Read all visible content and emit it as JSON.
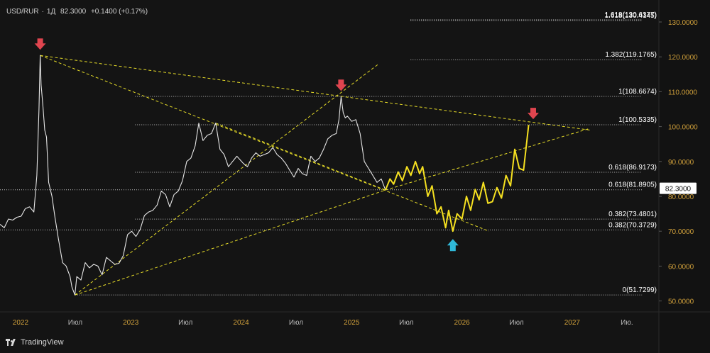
{
  "header": {
    "symbol": "USD/RUR",
    "timeframe": "1Д",
    "price": "82.3000",
    "change": "+0.1400 (+0.17%)"
  },
  "footer": {
    "brand": "TradingView"
  },
  "colors": {
    "background": "#141414",
    "price_line": "#e6e6e6",
    "projection": "#f5e020",
    "trend_lines": "#e6dc28",
    "axis_text": "#cf9f3a",
    "down_arrow": "#e0454f",
    "up_arrow": "#2fb8d8"
  },
  "chart_data": {
    "type": "line",
    "title": "",
    "xlabel": "",
    "ylabel": "",
    "x_tick_labels": [
      "2022",
      "Июл",
      "2023",
      "Июл",
      "2024",
      "Июл",
      "2025",
      "Июл",
      "2026",
      "Июл",
      "2027",
      "Ию."
    ],
    "y_tick_labels": [
      "130.0000",
      "120.0000",
      "110.0000",
      "100.0000",
      "90.0000",
      "80.0000",
      "70.0000",
      "60.0000",
      "50.0000"
    ],
    "ylim": [
      48,
      134
    ],
    "xlim": [
      "2021-10-25",
      "2027-10-15"
    ],
    "current_price_label": "82.3000",
    "current_price": 82.3,
    "series": [
      {
        "role": "history",
        "points": [
          [
            "2021-10-25",
            72.0
          ],
          [
            "2021-11-08",
            71.0
          ],
          [
            "2021-11-22",
            73.5
          ],
          [
            "2021-12-06",
            73.2
          ],
          [
            "2021-12-20",
            74.0
          ],
          [
            "2022-01-03",
            74.3
          ],
          [
            "2022-01-17",
            76.5
          ],
          [
            "2022-01-31",
            77.0
          ],
          [
            "2022-02-14",
            75.5
          ],
          [
            "2022-02-24",
            86.0
          ],
          [
            "2022-03-03",
            105.0
          ],
          [
            "2022-03-07",
            120.4
          ],
          [
            "2022-03-10",
            112.0
          ],
          [
            "2022-03-16",
            106.0
          ],
          [
            "2022-03-22",
            99.0
          ],
          [
            "2022-03-28",
            97.0
          ],
          [
            "2022-04-04",
            84.0
          ],
          [
            "2022-04-15",
            80.0
          ],
          [
            "2022-04-25",
            74.0
          ],
          [
            "2022-05-06",
            68.0
          ],
          [
            "2022-05-20",
            61.0
          ],
          [
            "2022-06-01",
            60.0
          ],
          [
            "2022-06-14",
            57.0
          ],
          [
            "2022-06-20",
            54.0
          ],
          [
            "2022-06-30",
            51.7
          ],
          [
            "2022-07-06",
            57.0
          ],
          [
            "2022-07-20",
            56.0
          ],
          [
            "2022-08-03",
            61.0
          ],
          [
            "2022-08-17",
            59.5
          ],
          [
            "2022-08-31",
            60.5
          ],
          [
            "2022-09-14",
            60.0
          ],
          [
            "2022-09-28",
            57.5
          ],
          [
            "2022-10-12",
            62.5
          ],
          [
            "2022-10-26",
            61.5
          ],
          [
            "2022-11-09",
            60.5
          ],
          [
            "2022-11-23",
            60.8
          ],
          [
            "2022-12-07",
            63.0
          ],
          [
            "2022-12-21",
            69.0
          ],
          [
            "2023-01-04",
            70.0
          ],
          [
            "2023-01-18",
            68.5
          ],
          [
            "2023-02-01",
            70.5
          ],
          [
            "2023-02-15",
            74.5
          ],
          [
            "2023-03-01",
            75.5
          ],
          [
            "2023-03-15",
            76.0
          ],
          [
            "2023-03-29",
            77.5
          ],
          [
            "2023-04-12",
            81.5
          ],
          [
            "2023-04-26",
            80.5
          ],
          [
            "2023-05-10",
            77.0
          ],
          [
            "2023-05-24",
            80.5
          ],
          [
            "2023-06-07",
            81.5
          ],
          [
            "2023-06-21",
            84.5
          ],
          [
            "2023-07-05",
            90.0
          ],
          [
            "2023-07-19",
            91.0
          ],
          [
            "2023-08-02",
            94.5
          ],
          [
            "2023-08-14",
            101.0
          ],
          [
            "2023-08-28",
            96.0
          ],
          [
            "2023-09-11",
            97.5
          ],
          [
            "2023-09-25",
            98.0
          ],
          [
            "2023-10-09",
            101.0
          ],
          [
            "2023-10-23",
            93.5
          ],
          [
            "2023-11-06",
            92.0
          ],
          [
            "2023-11-20",
            88.5
          ],
          [
            "2023-12-04",
            90.0
          ],
          [
            "2023-12-18",
            91.5
          ],
          [
            "2024-01-08",
            89.5
          ],
          [
            "2024-01-22",
            88.5
          ],
          [
            "2024-02-05",
            91.0
          ],
          [
            "2024-02-19",
            92.5
          ],
          [
            "2024-03-04",
            91.5
          ],
          [
            "2024-03-18",
            92.0
          ],
          [
            "2024-04-01",
            92.5
          ],
          [
            "2024-04-15",
            94.0
          ],
          [
            "2024-04-29",
            92.0
          ],
          [
            "2024-05-13",
            91.0
          ],
          [
            "2024-05-27",
            89.5
          ],
          [
            "2024-06-10",
            87.5
          ],
          [
            "2024-06-24",
            85.5
          ],
          [
            "2024-07-08",
            88.0
          ],
          [
            "2024-07-22",
            86.5
          ],
          [
            "2024-08-05",
            86.0
          ],
          [
            "2024-08-19",
            91.5
          ],
          [
            "2024-09-02",
            90.0
          ],
          [
            "2024-09-16",
            91.0
          ],
          [
            "2024-09-30",
            93.5
          ],
          [
            "2024-10-14",
            96.5
          ],
          [
            "2024-10-28",
            97.5
          ],
          [
            "2024-11-11",
            98.0
          ],
          [
            "2024-11-20",
            102.0
          ],
          [
            "2024-11-27",
            108.6
          ],
          [
            "2024-12-04",
            104.0
          ],
          [
            "2024-12-11",
            102.5
          ],
          [
            "2024-12-18",
            103.0
          ],
          [
            "2025-01-01",
            101.5
          ],
          [
            "2025-01-15",
            102.0
          ],
          [
            "2025-01-29",
            98.0
          ],
          [
            "2025-02-12",
            90.0
          ],
          [
            "2025-02-26",
            88.0
          ],
          [
            "2025-03-12",
            86.0
          ],
          [
            "2025-03-26",
            84.0
          ],
          [
            "2025-04-09",
            85.0
          ],
          [
            "2025-04-23",
            81.8
          ]
        ]
      },
      {
        "role": "projection",
        "points": [
          [
            "2025-04-23",
            81.8
          ],
          [
            "2025-05-08",
            85.0
          ],
          [
            "2025-05-20",
            83.5
          ],
          [
            "2025-06-04",
            87.0
          ],
          [
            "2025-06-18",
            84.5
          ],
          [
            "2025-07-03",
            88.5
          ],
          [
            "2025-07-16",
            86.0
          ],
          [
            "2025-07-31",
            90.0
          ],
          [
            "2025-08-14",
            86.5
          ],
          [
            "2025-08-24",
            88.5
          ],
          [
            "2025-09-10",
            80.0
          ],
          [
            "2025-09-24",
            83.0
          ],
          [
            "2025-10-10",
            75.0
          ],
          [
            "2025-10-24",
            77.0
          ],
          [
            "2025-11-08",
            71.0
          ],
          [
            "2025-11-18",
            76.0
          ],
          [
            "2025-12-02",
            70.0
          ],
          [
            "2025-12-16",
            75.0
          ],
          [
            "2026-01-01",
            73.5
          ],
          [
            "2026-01-16",
            80.0
          ],
          [
            "2026-01-30",
            76.0
          ],
          [
            "2026-02-14",
            82.0
          ],
          [
            "2026-02-27",
            79.0
          ],
          [
            "2026-03-13",
            84.0
          ],
          [
            "2026-03-28",
            78.0
          ],
          [
            "2026-04-12",
            78.5
          ],
          [
            "2026-04-27",
            82.5
          ],
          [
            "2026-05-12",
            79.5
          ],
          [
            "2026-05-27",
            86.0
          ],
          [
            "2026-06-11",
            83.0
          ],
          [
            "2026-06-25",
            93.5
          ],
          [
            "2026-07-10",
            88.0
          ],
          [
            "2026-07-24",
            87.5
          ],
          [
            "2026-08-10",
            100.5
          ]
        ]
      }
    ],
    "fib_levels": [
      {
        "label": "1.618(130.6377)",
        "value": 130.64,
        "x_start": "2025-07-15",
        "x_end": "2027-08-20"
      },
      {
        "label": "1.618(130.4145)",
        "value": 130.41,
        "x_start": "2025-07-15",
        "x_end": "2027-08-20"
      },
      {
        "label": "1.382(119.1765)",
        "value": 119.18,
        "x_start": "2025-07-15",
        "x_end": "2027-08-20"
      },
      {
        "label": "1(108.6674)",
        "value": 108.67,
        "x_start": "2023-01-15",
        "x_end": "2027-08-20"
      },
      {
        "label": "1(100.5335)",
        "value": 100.53,
        "x_start": "2023-01-15",
        "x_end": "2027-08-20"
      },
      {
        "label": "0.618(86.9173)",
        "value": 86.92,
        "x_start": "2023-01-15",
        "x_end": "2027-08-20"
      },
      {
        "label": "0.618(81.8905)",
        "value": 81.89,
        "x_start": "2021-10-25",
        "x_end": "2027-08-20"
      },
      {
        "label": "0.382(73.4801)",
        "value": 73.48,
        "x_start": "2023-01-15",
        "x_end": "2027-08-20"
      },
      {
        "label": "0.382(70.3729)",
        "value": 70.37,
        "x_start": "2021-10-25",
        "x_end": "2027-08-20"
      },
      {
        "label": "0(51.7299)",
        "value": 51.73,
        "x_start": "2022-06-30",
        "x_end": "2027-08-20"
      }
    ],
    "trend_lines": [
      {
        "from": [
          "2022-03-07",
          120.4
        ],
        "to": [
          "2027-03-01",
          99.0
        ]
      },
      {
        "from": [
          "2022-03-07",
          120.4
        ],
        "to": [
          "2026-04-01",
          70.0
        ]
      },
      {
        "from": [
          "2022-06-30",
          51.7
        ],
        "to": [
          "2025-04-01",
          118.0
        ]
      },
      {
        "from": [
          "2025-04-23",
          81.8
        ],
        "to": [
          "2027-03-01",
          99.5
        ]
      },
      {
        "from": [
          "2022-06-30",
          51.7
        ],
        "to": [
          "2025-04-23",
          81.8
        ]
      },
      {
        "from": [
          "2023-10-09",
          101.0
        ],
        "to": [
          "2025-04-23",
          81.8
        ]
      }
    ],
    "markers": [
      {
        "type": "down-arrow",
        "x": "2022-03-07",
        "y": 120.4
      },
      {
        "type": "down-arrow",
        "x": "2024-11-27",
        "y": 108.6
      },
      {
        "type": "down-arrow",
        "x": "2026-08-25",
        "y": 100.5
      },
      {
        "type": "up-arrow",
        "x": "2025-12-02",
        "y": 70.0
      }
    ],
    "grid": false,
    "legend": "none"
  }
}
